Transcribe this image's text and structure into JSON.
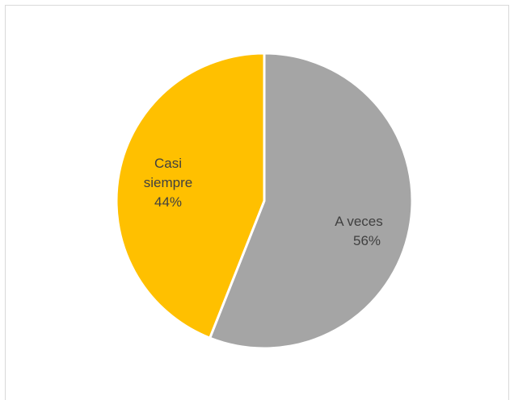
{
  "chart_data": {
    "type": "pie",
    "title": "",
    "slices": [
      {
        "name": "A veces",
        "value": 56,
        "percent_label": "56%",
        "color": "#a5a5a5"
      },
      {
        "name": "Casi siempre",
        "value": 44,
        "percent_label": "44%",
        "color": "#ffc000"
      }
    ],
    "start_angle": "12 o'clock",
    "direction": "clockwise",
    "legend": "none",
    "data_labels": "category name and percent, inside slices"
  }
}
